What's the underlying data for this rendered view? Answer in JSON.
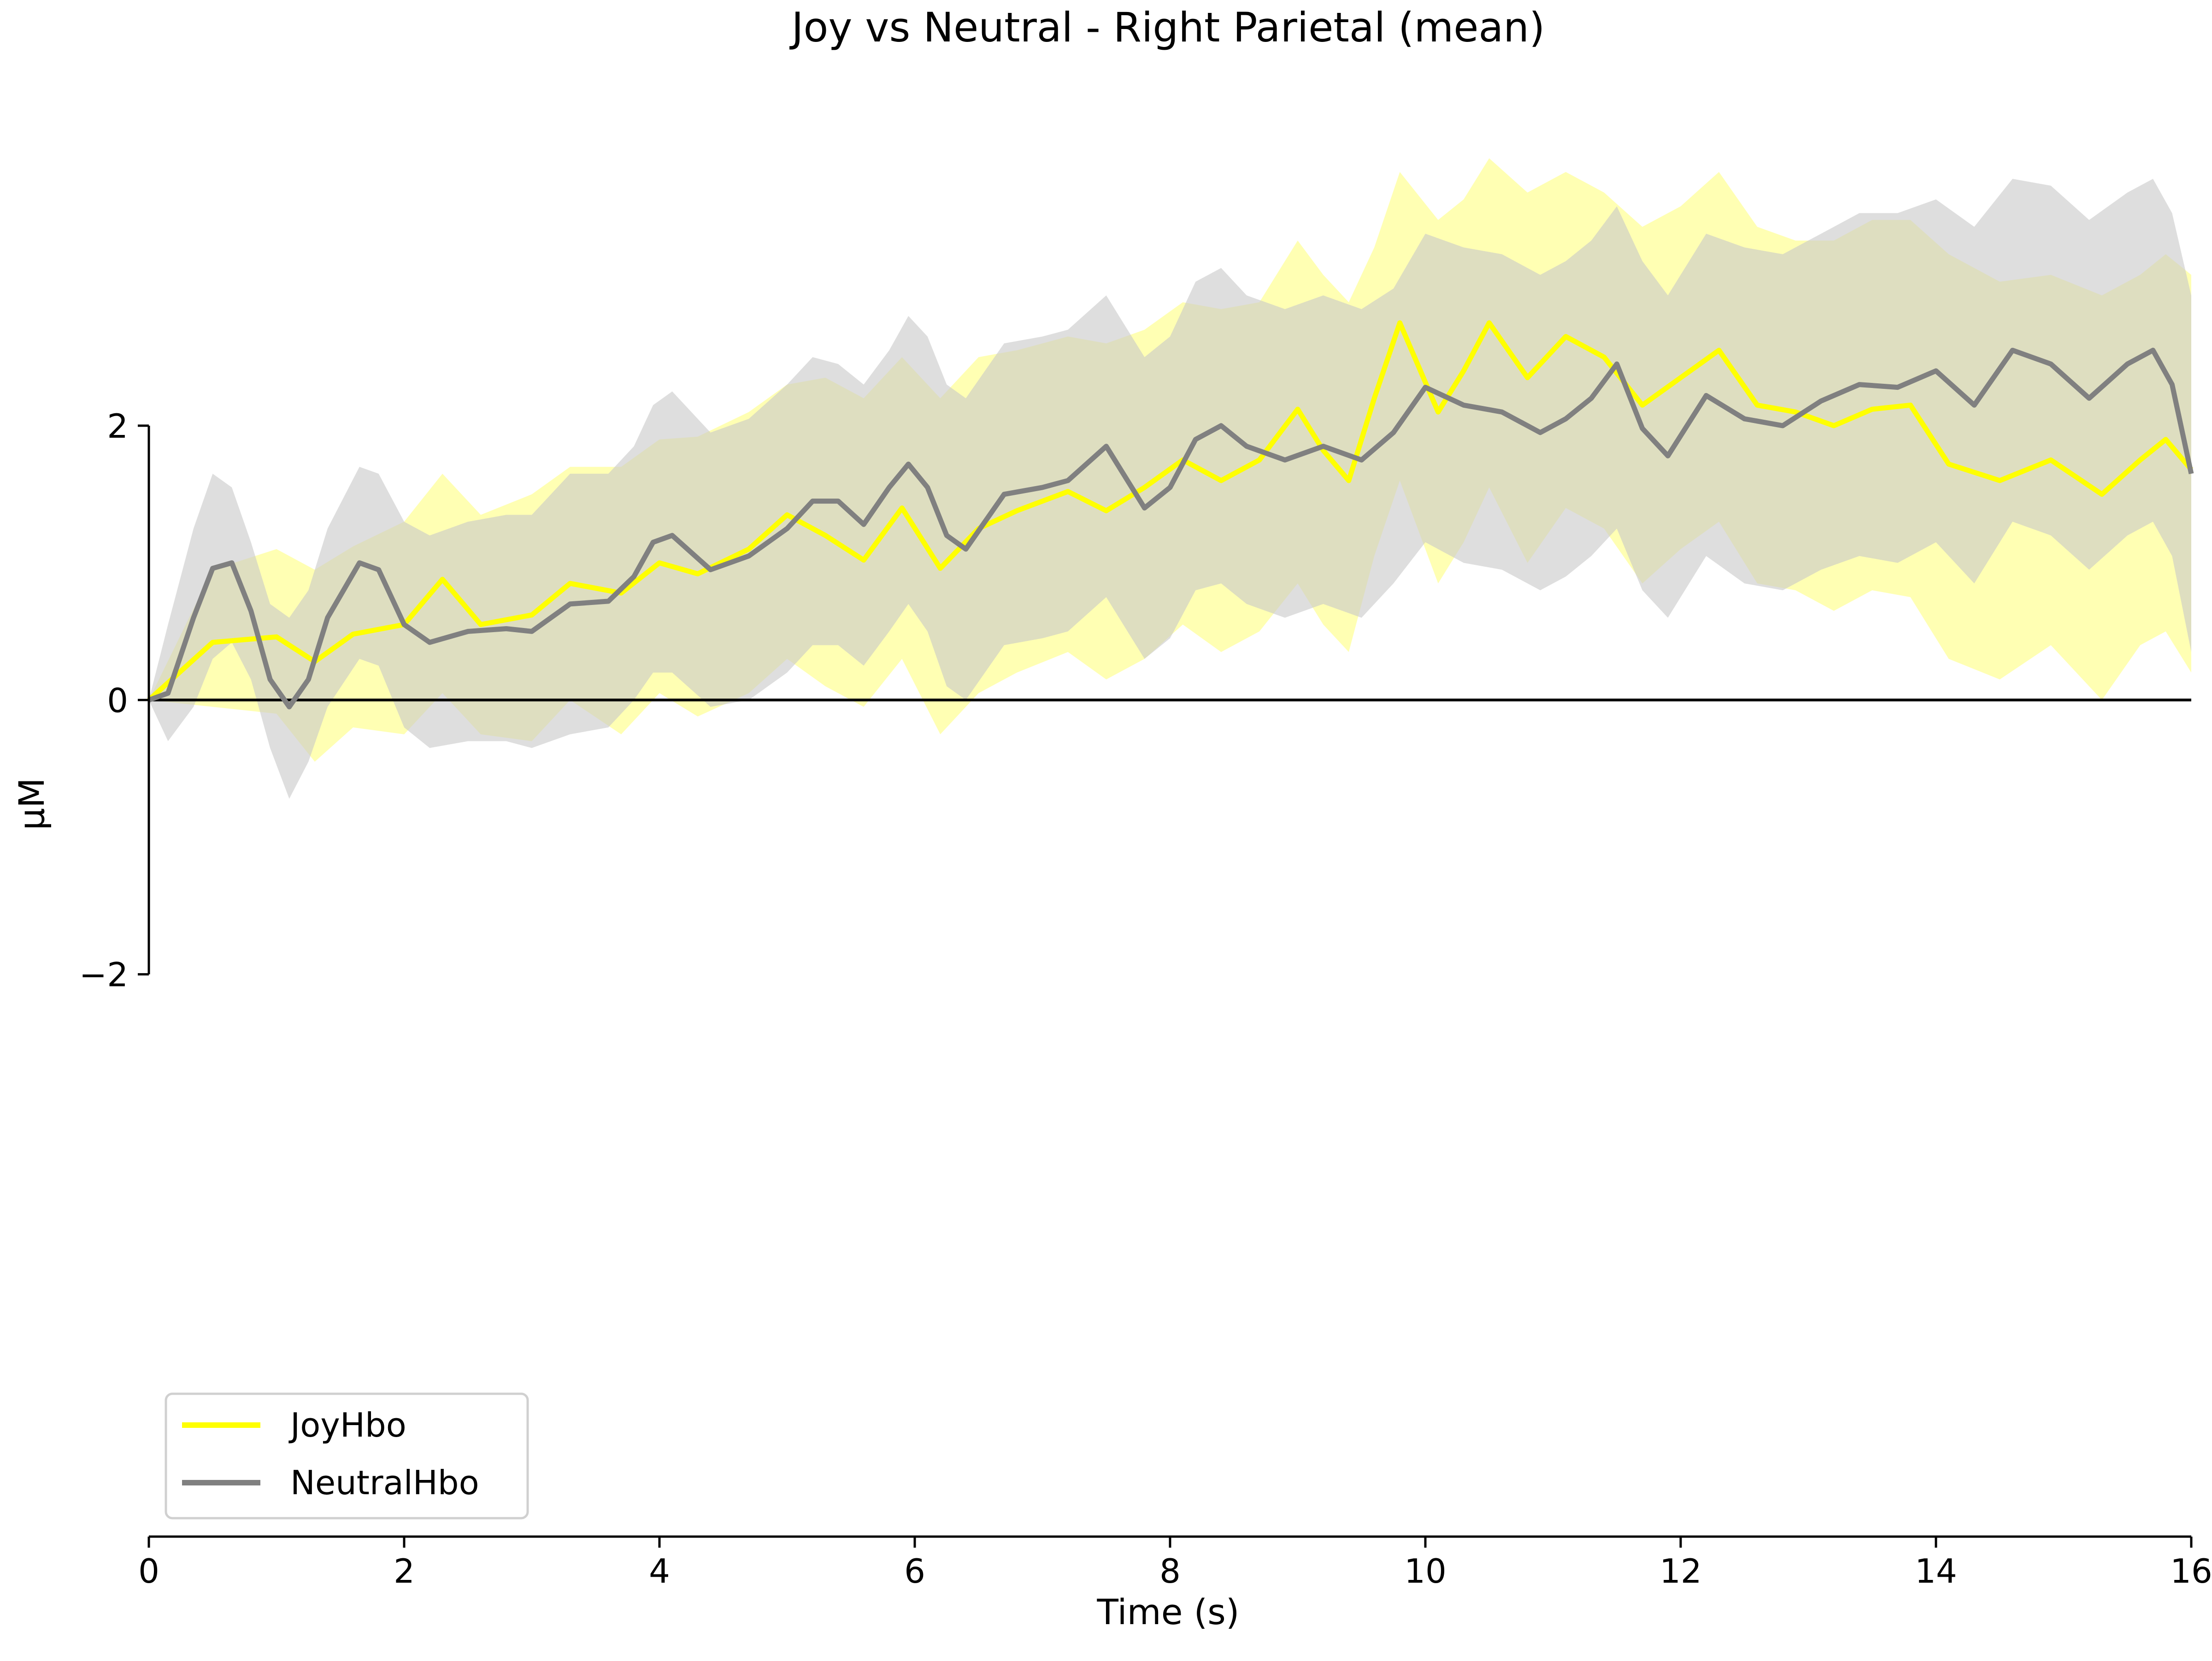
{
  "chart_data": {
    "type": "line",
    "title": "Joy vs Neutral - Right Parietal (mean)",
    "xlabel": "Time (s)",
    "ylabel": "µM",
    "xlim": [
      0,
      16
    ],
    "ylim": [
      -2,
      2
    ],
    "view_ylim": [
      -6.1,
      4.6
    ],
    "xticks": [
      0,
      2,
      4,
      6,
      8,
      10,
      12,
      14,
      16
    ],
    "yticks": [
      -2,
      0,
      2
    ],
    "xtick_labels": [
      "0",
      "2",
      "4",
      "6",
      "8",
      "10",
      "12",
      "14",
      "16"
    ],
    "ytick_labels": [
      "−2",
      "0",
      "2"
    ],
    "zero_line": true,
    "grid": false,
    "legend_position": "lower-left",
    "series": [
      {
        "name": "JoyHbo",
        "color": "#ffff00",
        "band_color": "#ffff99",
        "x": [
          0,
          0.5,
          1.0,
          1.3,
          1.6,
          2.0,
          2.3,
          2.6,
          3.0,
          3.3,
          3.7,
          4.0,
          4.3,
          4.7,
          5.0,
          5.3,
          5.6,
          5.9,
          6.2,
          6.5,
          6.8,
          7.2,
          7.5,
          7.8,
          8.1,
          8.4,
          8.7,
          9.0,
          9.2,
          9.4,
          9.6,
          9.8,
          10.1,
          10.3,
          10.5,
          10.8,
          11.1,
          11.4,
          11.7,
          12.0,
          12.3,
          12.6,
          12.9,
          13.2,
          13.5,
          13.8,
          14.1,
          14.5,
          14.9,
          15.3,
          15.6,
          15.8,
          16.0
        ],
        "mean": [
          0,
          0.42,
          0.46,
          0.28,
          0.48,
          0.55,
          0.88,
          0.55,
          0.62,
          0.85,
          0.78,
          1.0,
          0.92,
          1.1,
          1.35,
          1.2,
          1.02,
          1.4,
          0.96,
          1.25,
          1.38,
          1.52,
          1.38,
          1.55,
          1.75,
          1.6,
          1.75,
          2.12,
          1.82,
          1.6,
          2.2,
          2.75,
          2.1,
          2.4,
          2.75,
          2.35,
          2.65,
          2.5,
          2.15,
          2.35,
          2.55,
          2.15,
          2.1,
          2.0,
          2.12,
          2.15,
          1.72,
          1.6,
          1.75,
          1.5,
          1.75,
          1.9,
          1.68
        ],
        "upper": [
          0,
          0.95,
          1.1,
          0.95,
          1.12,
          1.3,
          1.65,
          1.35,
          1.5,
          1.7,
          1.7,
          1.9,
          1.92,
          2.1,
          2.3,
          2.35,
          2.2,
          2.5,
          2.2,
          2.5,
          2.55,
          2.65,
          2.6,
          2.7,
          2.9,
          2.85,
          2.9,
          3.35,
          3.1,
          2.9,
          3.3,
          3.85,
          3.5,
          3.65,
          3.95,
          3.7,
          3.85,
          3.7,
          3.45,
          3.6,
          3.85,
          3.45,
          3.35,
          3.35,
          3.5,
          3.5,
          3.25,
          3.05,
          3.1,
          2.95,
          3.1,
          3.25,
          3.1
        ],
        "lower": [
          0,
          -0.05,
          -0.1,
          -0.45,
          -0.2,
          -0.25,
          0.05,
          -0.25,
          -0.3,
          0.0,
          -0.25,
          0.05,
          -0.12,
          0.05,
          0.3,
          0.1,
          -0.05,
          0.3,
          -0.25,
          0.05,
          0.2,
          0.35,
          0.15,
          0.3,
          0.55,
          0.35,
          0.5,
          0.85,
          0.55,
          0.35,
          1.05,
          1.6,
          0.85,
          1.15,
          1.55,
          1.0,
          1.4,
          1.25,
          0.85,
          1.1,
          1.3,
          0.85,
          0.8,
          0.65,
          0.8,
          0.75,
          0.3,
          0.15,
          0.4,
          0.0,
          0.4,
          0.5,
          0.2
        ]
      },
      {
        "name": "NeutralHbo",
        "color": "#808080",
        "band_color": "#c8c8c8",
        "x": [
          0,
          0.15,
          0.35,
          0.5,
          0.65,
          0.8,
          0.95,
          1.1,
          1.25,
          1.4,
          1.65,
          1.8,
          2.0,
          2.2,
          2.5,
          2.8,
          3.0,
          3.3,
          3.6,
          3.8,
          3.95,
          4.1,
          4.4,
          4.7,
          5.0,
          5.2,
          5.4,
          5.6,
          5.8,
          5.95,
          6.1,
          6.25,
          6.4,
          6.7,
          7.0,
          7.2,
          7.5,
          7.8,
          8.0,
          8.2,
          8.4,
          8.6,
          8.9,
          9.2,
          9.5,
          9.75,
          10.0,
          10.3,
          10.6,
          10.9,
          11.1,
          11.3,
          11.5,
          11.7,
          11.9,
          12.2,
          12.5,
          12.8,
          13.1,
          13.4,
          13.7,
          14.0,
          14.3,
          14.6,
          14.9,
          15.2,
          15.5,
          15.7,
          15.85,
          16.0
        ],
        "mean": [
          0,
          0.05,
          0.6,
          0.96,
          1.0,
          0.65,
          0.15,
          -0.05,
          0.15,
          0.6,
          1.0,
          0.95,
          0.55,
          0.42,
          0.5,
          0.52,
          0.5,
          0.7,
          0.72,
          0.9,
          1.15,
          1.2,
          0.95,
          1.05,
          1.25,
          1.45,
          1.45,
          1.28,
          1.55,
          1.72,
          1.55,
          1.2,
          1.1,
          1.5,
          1.55,
          1.6,
          1.85,
          1.4,
          1.55,
          1.9,
          2.0,
          1.85,
          1.75,
          1.85,
          1.75,
          1.95,
          2.28,
          2.15,
          2.1,
          1.95,
          2.05,
          2.2,
          2.45,
          1.98,
          1.78,
          2.22,
          2.05,
          2.0,
          2.18,
          2.3,
          2.28,
          2.4,
          2.15,
          2.55,
          2.45,
          2.2,
          2.45,
          2.55,
          2.3,
          1.65
        ],
        "upper": [
          0,
          0.55,
          1.25,
          1.65,
          1.55,
          1.15,
          0.7,
          0.6,
          0.8,
          1.25,
          1.7,
          1.65,
          1.3,
          1.2,
          1.3,
          1.35,
          1.35,
          1.65,
          1.65,
          1.85,
          2.15,
          2.25,
          1.95,
          2.05,
          2.3,
          2.5,
          2.45,
          2.3,
          2.55,
          2.8,
          2.65,
          2.3,
          2.2,
          2.6,
          2.65,
          2.7,
          2.95,
          2.5,
          2.65,
          3.05,
          3.15,
          2.95,
          2.85,
          2.95,
          2.85,
          3.0,
          3.4,
          3.3,
          3.25,
          3.1,
          3.2,
          3.35,
          3.6,
          3.2,
          2.95,
          3.4,
          3.3,
          3.25,
          3.4,
          3.55,
          3.55,
          3.65,
          3.45,
          3.8,
          3.75,
          3.5,
          3.7,
          3.8,
          3.55,
          2.95
        ],
        "lower": [
          0,
          -0.3,
          -0.05,
          0.3,
          0.42,
          0.15,
          -0.35,
          -0.72,
          -0.45,
          -0.05,
          0.3,
          0.25,
          -0.2,
          -0.35,
          -0.3,
          -0.3,
          -0.35,
          -0.25,
          -0.2,
          0.0,
          0.2,
          0.2,
          -0.05,
          0.0,
          0.2,
          0.4,
          0.4,
          0.25,
          0.5,
          0.7,
          0.5,
          0.1,
          0.0,
          0.4,
          0.45,
          0.5,
          0.75,
          0.3,
          0.45,
          0.8,
          0.85,
          0.7,
          0.6,
          0.7,
          0.6,
          0.85,
          1.15,
          1.0,
          0.95,
          0.8,
          0.9,
          1.05,
          1.25,
          0.8,
          0.6,
          1.05,
          0.85,
          0.8,
          0.95,
          1.05,
          1.0,
          1.15,
          0.85,
          1.3,
          1.2,
          0.95,
          1.2,
          1.3,
          1.05,
          0.35
        ]
      }
    ]
  }
}
